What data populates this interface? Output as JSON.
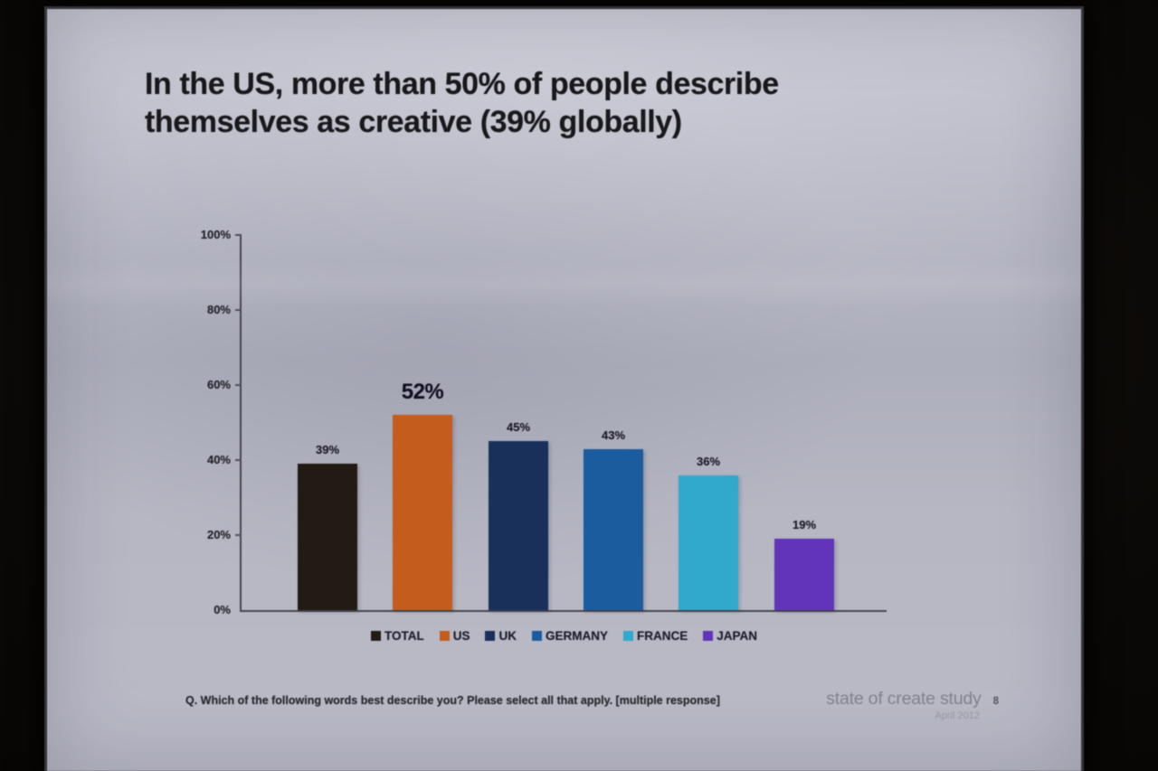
{
  "slide": {
    "title": "In the US, more than 50% of people describe themselves as creative (39% globally)",
    "footer_question": "Q. Which of the following words best describe you? Please select all that apply. [multiple response]",
    "branding": {
      "study_name": "state of create study",
      "date": "April 2012",
      "page_number": "8"
    }
  },
  "chart_data": {
    "type": "bar",
    "title": "",
    "categories": [
      "TOTAL",
      "US",
      "UK",
      "GERMANY",
      "FRANCE",
      "JAPAN"
    ],
    "values": [
      39,
      52,
      45,
      43,
      36,
      19
    ],
    "value_labels": [
      "39%",
      "52%",
      "45%",
      "43%",
      "36%",
      "19%"
    ],
    "bar_colors": [
      "#221b14",
      "#c45c1c",
      "#18305a",
      "#1a5c9e",
      "#30a9cd",
      "#6134ba"
    ],
    "highlight_index": 1,
    "y_ticks": [
      "0%",
      "20%",
      "40%",
      "60%",
      "80%",
      "100%"
    ],
    "ylim": [
      0,
      100
    ],
    "grid": false,
    "legend_position": "bottom"
  }
}
